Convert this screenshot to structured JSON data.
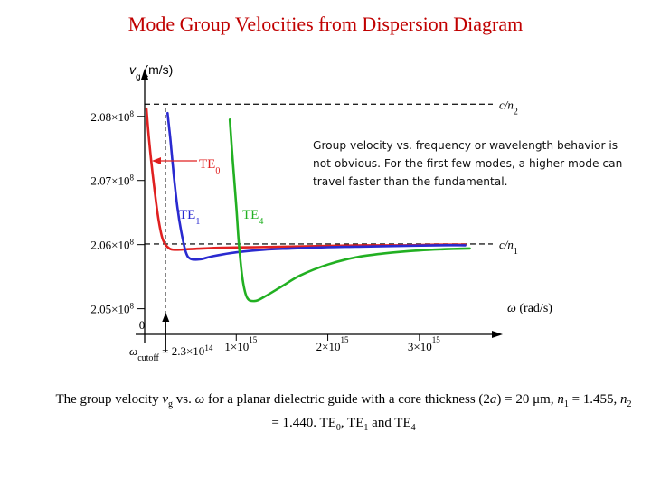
{
  "slide": {
    "title": "Mode Group Velocities from Dispersion Diagram",
    "note": "Group velocity vs. frequency or wavelength behavior is not obvious. For the first few modes, a higher mode can travel faster than the fundamental.",
    "caption_parts": {
      "p1": "The group velocity ",
      "vg_v": "v",
      "vg_sub": "g",
      "p2": " vs. ",
      "omega": "ω",
      "p3": " for a planar dielectric guide with a core thickness (2",
      "a": "a",
      "p4": ") = 20 μm, ",
      "n1_n": "n",
      "n1_sub": "1",
      "p5": " = 1.455, ",
      "n2_n": "n",
      "n2_sub": "2",
      "p6": " = 1.440. TE",
      "te0_sub": "0",
      "p7": ", TE",
      "te1_sub": "1",
      "p8": " and TE",
      "te4_sub": "4"
    }
  },
  "chart_data": {
    "type": "line",
    "y_axis": {
      "label_v": "v",
      "label_sub": "g",
      "label_unit": "(m/s)",
      "ticks": [
        {
          "value": 208000000.0,
          "mant": "2.08×10",
          "exp": "8"
        },
        {
          "value": 207000000.0,
          "mant": "2.07×10",
          "exp": "8"
        },
        {
          "value": 206000000.0,
          "mant": "2.06×10",
          "exp": "8"
        },
        {
          "value": 205000000.0,
          "mant": "2.05×10",
          "exp": "8"
        }
      ],
      "ylim": [
        204600000.0,
        208800000.0
      ]
    },
    "x_axis": {
      "label_omega": "ω",
      "label_unit": "(rad/s)",
      "zero_label": "0",
      "ticks": [
        {
          "value": 1000000000000000.0,
          "mant": "1×10",
          "exp": "15"
        },
        {
          "value": 2000000000000000.0,
          "mant": "2×10",
          "exp": "15"
        },
        {
          "value": 3000000000000000.0,
          "mant": "3×10",
          "exp": "15"
        }
      ],
      "xlim": [
        0,
        3900000000000000.0
      ]
    },
    "cutoff": {
      "value": 230000000000000.0,
      "label_omega": "ω",
      "label_sub": "cutoff",
      "label_eq": " = 2.3×10",
      "label_exp": "14"
    },
    "asymptotes": [
      {
        "value": 208190000.0,
        "label_c": "c/n",
        "label_sub": "2"
      },
      {
        "value": 206010000.0,
        "label_c": "c/n",
        "label_sub": "1"
      }
    ],
    "series": [
      {
        "name_base": "TE",
        "name_sub": "0",
        "color": "#e02020",
        "x": [
          20000000000000.0,
          50000000000000.0,
          100000000000000.0,
          150000000000000.0,
          200000000000000.0,
          270000000000000.0,
          350000000000000.0,
          500000000000000.0,
          800000000000000.0,
          1200000000000000.0,
          1600000000000000.0,
          2000000000000000.0,
          2400000000000000.0,
          2800000000000000.0,
          3200000000000000.0,
          3500000000000000.0
        ],
        "y": [
          208120000.0,
          207600000.0,
          206950000.0,
          206400000.0,
          206070000.0,
          205940000.0,
          205920000.0,
          205930000.0,
          205950000.0,
          205960000.0,
          205970000.0,
          205980000.0,
          205990000.0,
          205990000.0,
          206000000.0,
          206000000.0
        ]
      },
      {
        "name_base": "TE",
        "name_sub": "1",
        "color": "#2a2ad0",
        "x": [
          250000000000000.0,
          280000000000000.0,
          320000000000000.0,
          360000000000000.0,
          400000000000000.0,
          450000000000000.0,
          500000000000000.0,
          600000000000000.0,
          750000000000000.0,
          1000000000000000.0,
          1300000000000000.0,
          1600000000000000.0,
          2000000000000000.0,
          2400000000000000.0,
          2800000000000000.0,
          3200000000000000.0,
          3500000000000000.0
        ],
        "y": [
          208050000.0,
          207650000.0,
          207050000.0,
          206550000.0,
          206200000.0,
          205880000.0,
          205780000.0,
          205770000.0,
          205820000.0,
          205880000.0,
          205920000.0,
          205940000.0,
          205960000.0,
          205970000.0,
          205980000.0,
          205990000.0,
          205990000.0
        ]
      },
      {
        "name_base": "TE",
        "name_sub": "4",
        "color": "#22b022",
        "x": [
          930000000000000.0,
          960000000000000.0,
          1000000000000000.0,
          1030000000000000.0,
          1070000000000000.0,
          1120000000000000.0,
          1200000000000000.0,
          1300000000000000.0,
          1500000000000000.0,
          1700000000000000.0,
          2000000000000000.0,
          2300000000000000.0,
          2600000000000000.0,
          3000000000000000.0,
          3300000000000000.0,
          3550000000000000.0
        ],
        "y": [
          207950000.0,
          207350000.0,
          206600000.0,
          206000000.0,
          205450000.0,
          205170000.0,
          205120000.0,
          205180000.0,
          205350000.0,
          205520000.0,
          205690000.0,
          205800000.0,
          205860000.0,
          205910000.0,
          205930000.0,
          205940000.0
        ]
      }
    ]
  }
}
